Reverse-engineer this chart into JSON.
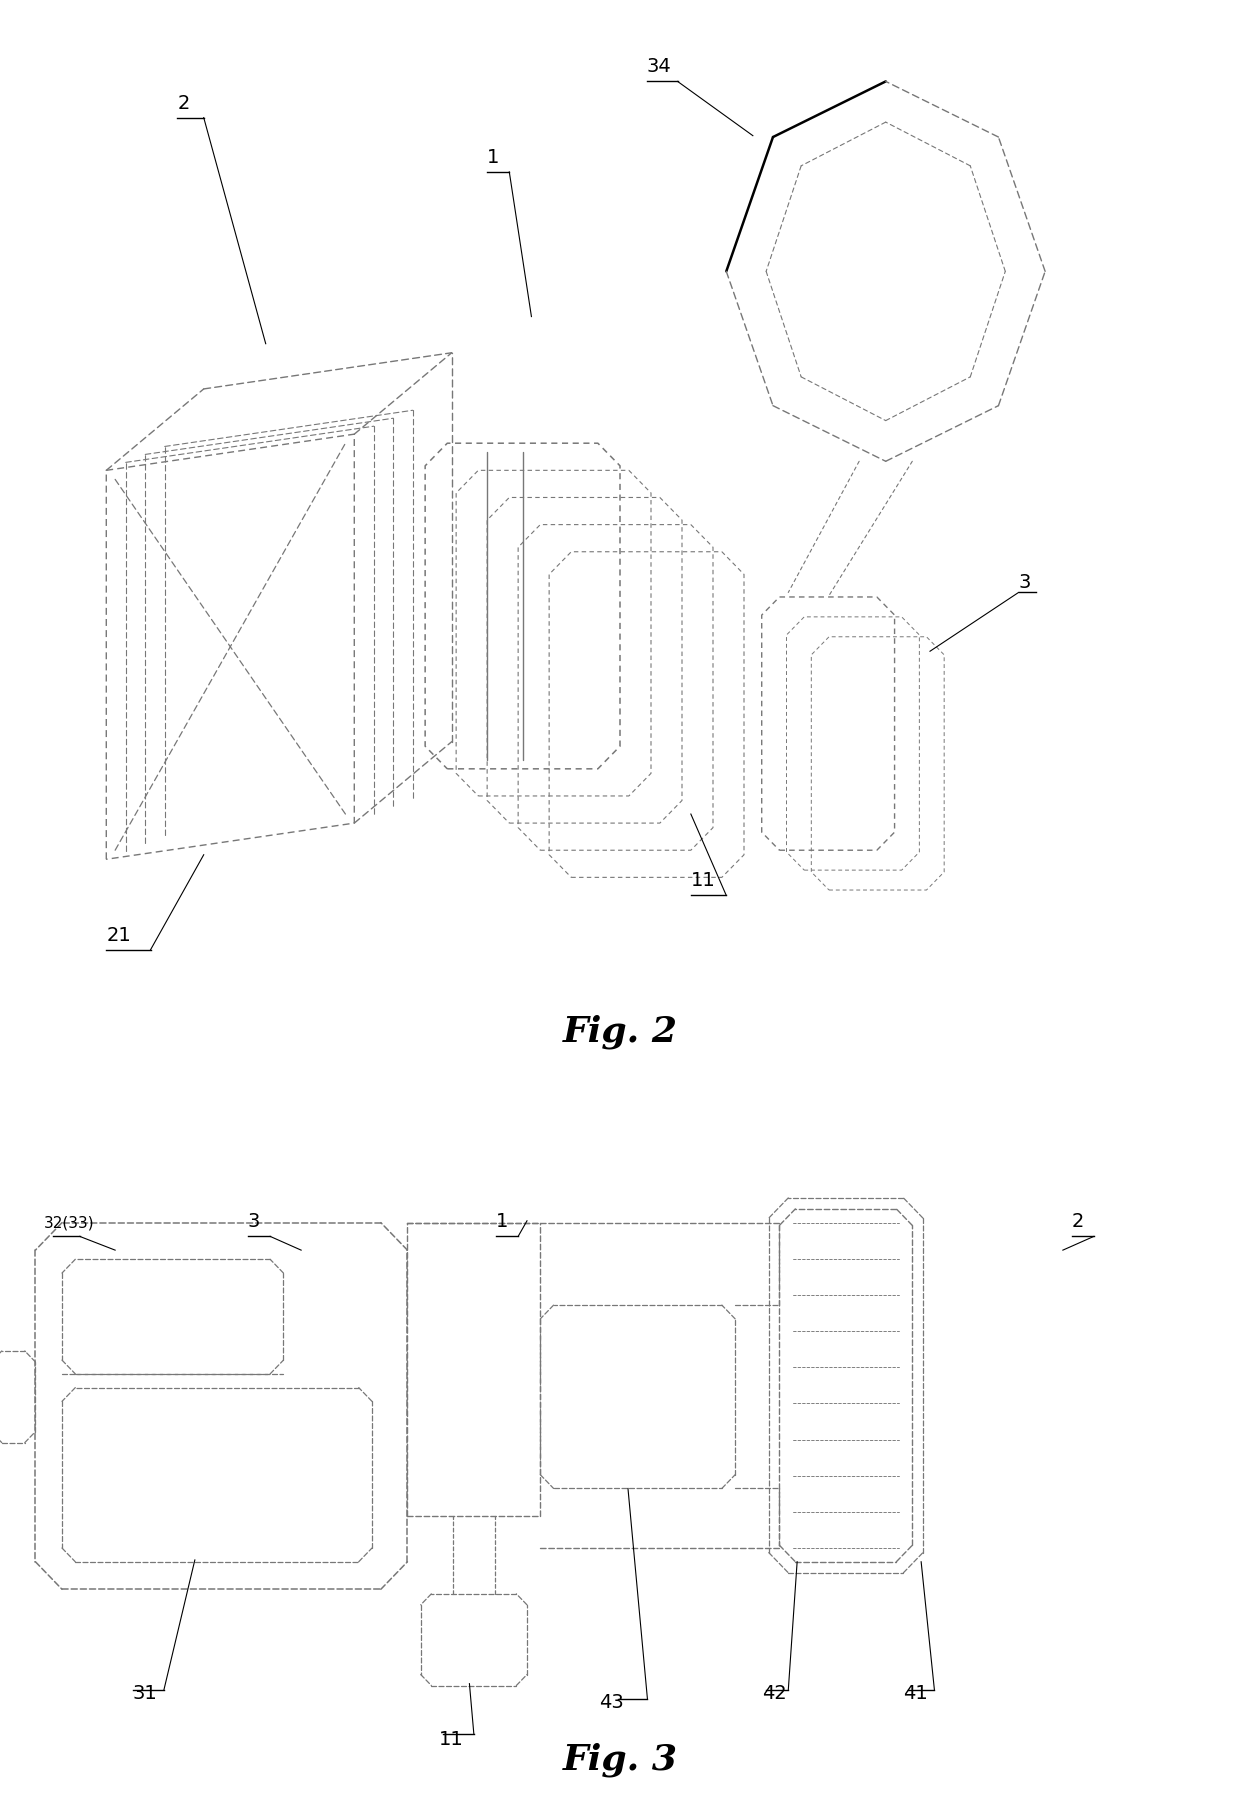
{
  "fig2_label": "Fig. 2",
  "fig3_label": "Fig. 3",
  "bg": "#ffffff",
  "lc": "#000000",
  "dc": "#777777",
  "lw_main": 1.1,
  "lw_thin": 0.75,
  "label_fs": 14,
  "caption_fs": 26,
  "fig_w": 12.4,
  "fig_h": 18.09
}
